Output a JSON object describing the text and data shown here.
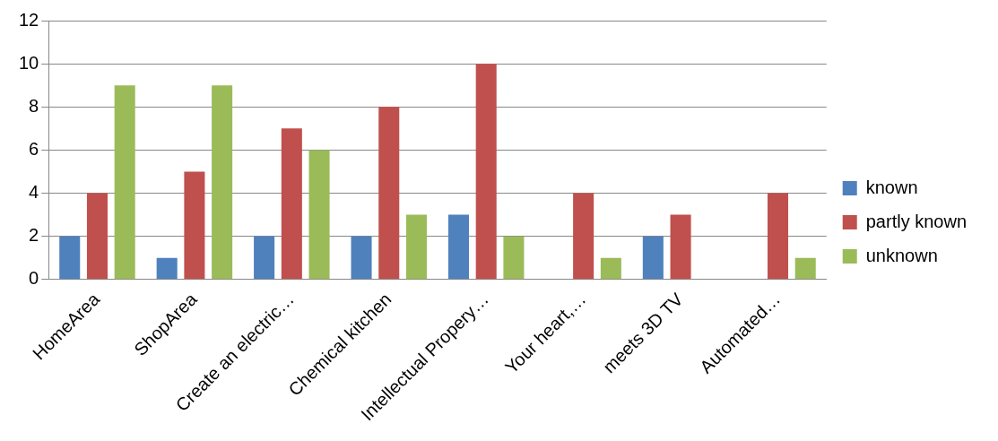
{
  "chart_data": {
    "type": "bar",
    "categories": [
      "HomeArea",
      "ShopArea",
      "Create an electric…",
      "Chemical kitchen",
      "Intellectual Propery…",
      "Your heart,…",
      "meets 3D TV",
      "Automated…"
    ],
    "series": [
      {
        "name": "known",
        "color": "#4f81bd",
        "values": [
          2,
          1,
          2,
          2,
          3,
          null,
          2,
          null
        ]
      },
      {
        "name": "partly known",
        "color": "#c0504d",
        "values": [
          4,
          5,
          7,
          8,
          10,
          4,
          3,
          4
        ]
      },
      {
        "name": "unknown",
        "color": "#9bbb59",
        "values": [
          9,
          9,
          6,
          3,
          2,
          1,
          null,
          1
        ]
      }
    ],
    "ylim": [
      0,
      12
    ],
    "yticks": [
      0,
      2,
      4,
      6,
      8,
      10,
      12
    ],
    "grid": "y",
    "legend": "right"
  }
}
